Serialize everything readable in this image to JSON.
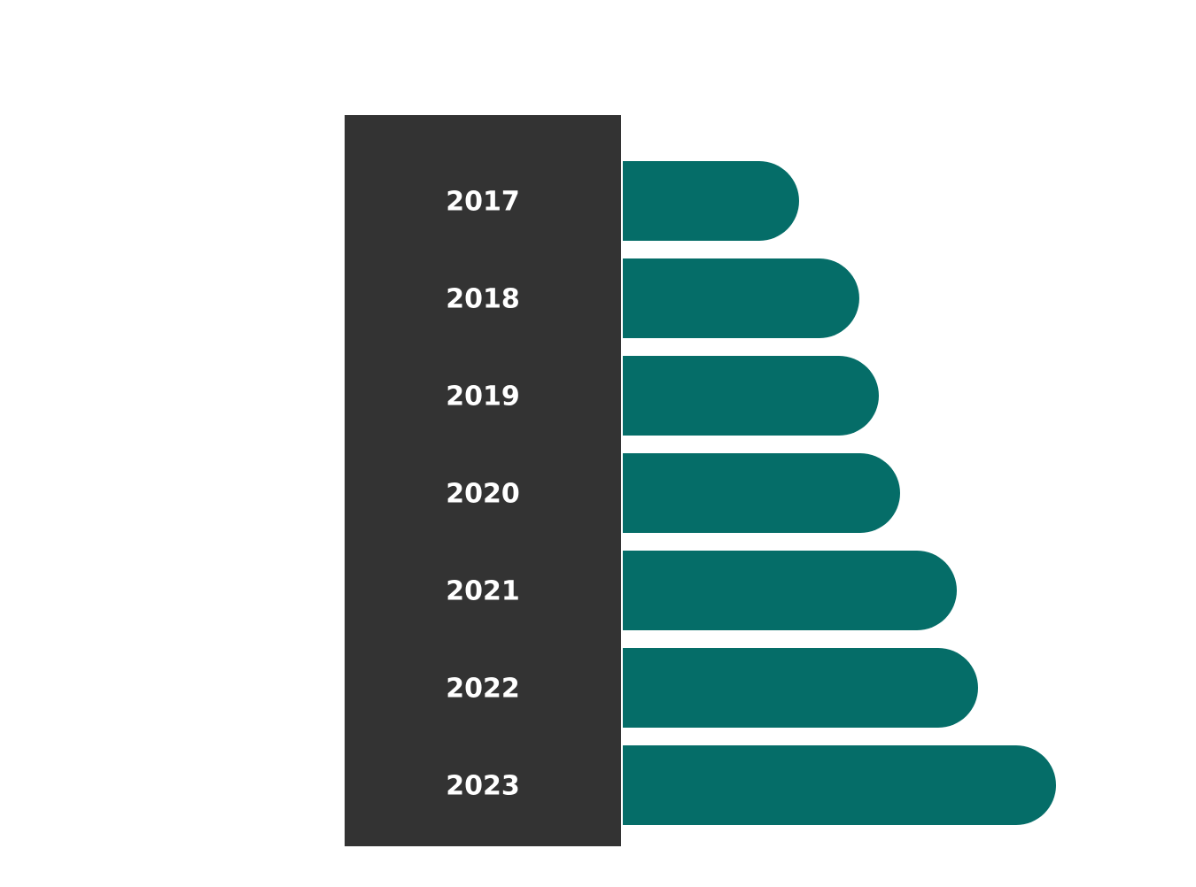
{
  "chart_data": {
    "type": "bar",
    "orientation": "horizontal",
    "categories": [
      "2017",
      "2018",
      "2019",
      "2020",
      "2021",
      "2022",
      "2023"
    ],
    "values": [
      199,
      267,
      289,
      313,
      377,
      401,
      489
    ],
    "color": "#056d68",
    "label_panel_color": "#333333"
  }
}
